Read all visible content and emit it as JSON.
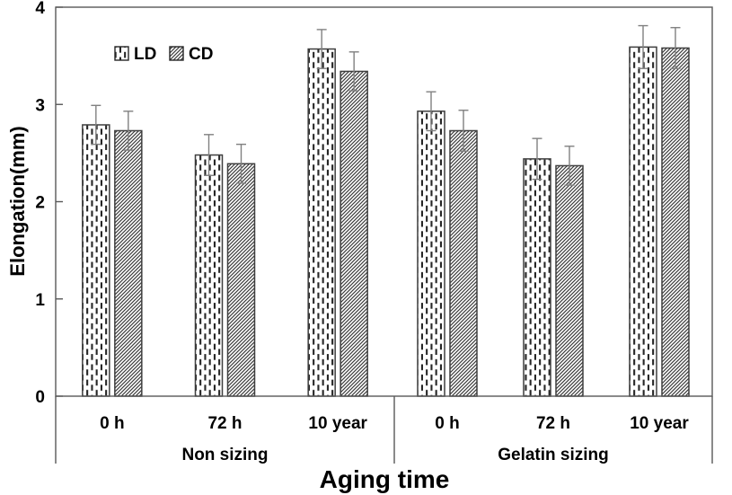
{
  "chart_data": {
    "type": "bar",
    "ylabel": "Elongation(mm)",
    "xlabel": "Aging time",
    "ylim": [
      0,
      4
    ],
    "yticks": [
      0,
      1,
      2,
      3,
      4
    ],
    "grid": false,
    "legend_position": "inside-top-left",
    "groups": [
      {
        "label": "Non sizing",
        "categories": [
          "0 h",
          "72 h",
          "10 year"
        ]
      },
      {
        "label": "Gelatin sizing",
        "categories": [
          "0 h",
          "72 h",
          "10 year"
        ]
      }
    ],
    "series": [
      {
        "name": "LD",
        "pattern": "vertical-dashes",
        "values": [
          2.79,
          2.48,
          3.57,
          2.93,
          2.44,
          3.59
        ],
        "errors": [
          0.2,
          0.21,
          0.2,
          0.2,
          0.21,
          0.22
        ]
      },
      {
        "name": "CD",
        "pattern": "diagonal-hatch",
        "values": [
          2.73,
          2.39,
          3.34,
          2.73,
          2.37,
          3.58
        ],
        "errors": [
          0.2,
          0.2,
          0.2,
          0.21,
          0.2,
          0.21
        ]
      }
    ],
    "colors": {
      "frame": "#595959",
      "bar_stroke": "#3f3f3f",
      "pattern_ink": "#262626",
      "error_bar": "#808080",
      "text": "#000000",
      "background": "#ffffff"
    }
  }
}
